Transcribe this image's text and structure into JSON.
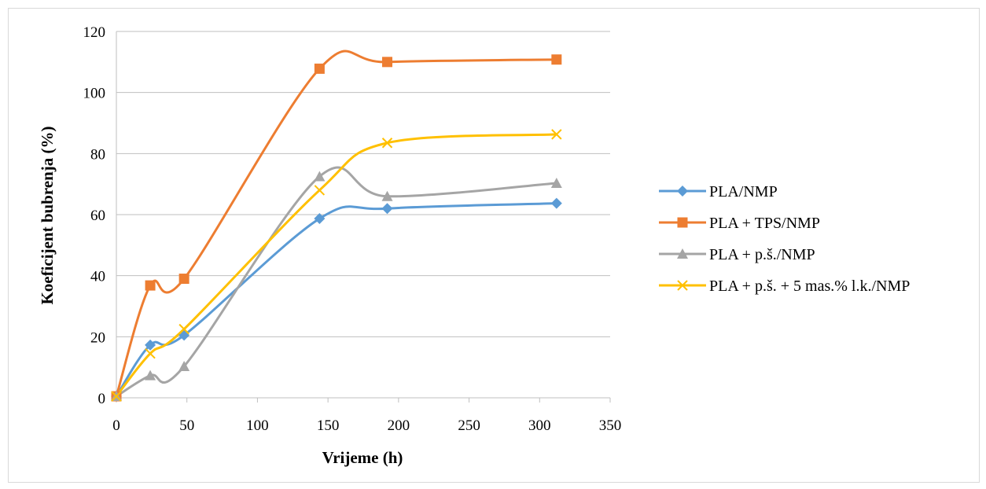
{
  "chart_data": {
    "type": "line",
    "title": "",
    "xlabel": "Vrijeme (h)",
    "ylabel": "Koeficijent bubrenja (%)",
    "xlim": [
      0,
      350
    ],
    "ylim": [
      0,
      120
    ],
    "xticks": [
      "0",
      "50",
      "100",
      "150",
      "200",
      "250",
      "300",
      "350"
    ],
    "yticks": [
      "0",
      "20",
      "40",
      "60",
      "80",
      "100",
      "120"
    ],
    "grid": "horizontal",
    "legend": "right",
    "series": [
      {
        "name": "PLA/NMP",
        "color": "#5b9bd5",
        "marker": "diamond",
        "x": [
          0,
          24,
          48,
          144,
          192,
          312
        ],
        "y": [
          0.5,
          17.3,
          20.5,
          58.7,
          62,
          63.7
        ]
      },
      {
        "name": "PLA + TPS/NMP",
        "color": "#ed7d31",
        "marker": "square",
        "x": [
          0,
          24,
          48,
          144,
          192,
          312
        ],
        "y": [
          0.5,
          36.8,
          39,
          107.8,
          110,
          110.8
        ]
      },
      {
        "name": "PLA + p.š./NMP",
        "color": "#a5a5a5",
        "marker": "triangle",
        "x": [
          0,
          24,
          48,
          144,
          192,
          312
        ],
        "y": [
          0.5,
          7.3,
          10.3,
          72.5,
          66,
          70.3
        ]
      },
      {
        "name": "PLA + p.š. + 5 mas.% l.k./NMP",
        "color": "#ffc000",
        "marker": "x",
        "x": [
          0,
          24,
          48,
          144,
          192,
          312
        ],
        "y": [
          0.5,
          14.5,
          22.5,
          68,
          83.5,
          86.3
        ]
      }
    ]
  }
}
